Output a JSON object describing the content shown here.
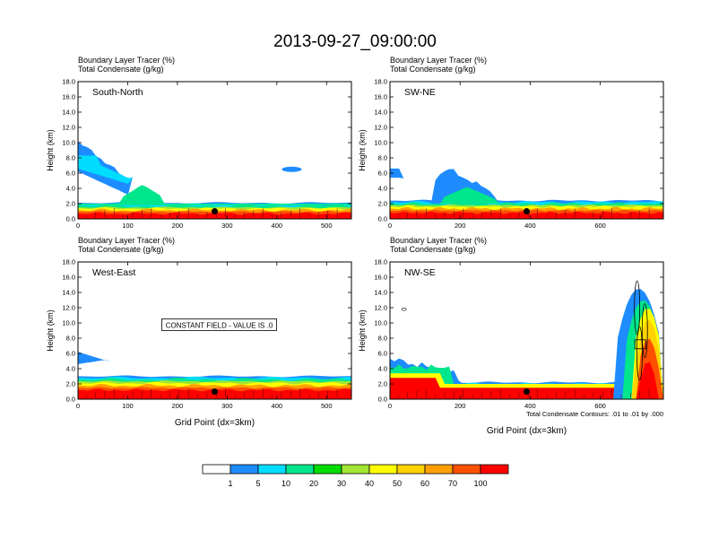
{
  "title": "2013-09-27_09:00:00",
  "panels": [
    {
      "id": "south-north",
      "label": "South-North",
      "subtitle1": "Boundary Layer Tracer   (%)",
      "subtitle2": "Total Condensate   (g/kg)",
      "xmax": 550,
      "xticks": [
        0,
        100,
        200,
        300,
        400,
        500
      ],
      "marker_x": 275
    },
    {
      "id": "sw-ne",
      "label": "SW-NE",
      "subtitle1": "Boundary Layer Tracer   (%)",
      "subtitle2": "Total Condensate   (g/kg)",
      "xmax": 780,
      "xticks": [
        0,
        200,
        400,
        600
      ],
      "marker_x": 390
    },
    {
      "id": "west-east",
      "label": "West-East",
      "subtitle1": "Boundary Layer Tracer   (%)",
      "subtitle2": "Total Condensate   (g/kg)",
      "xmax": 550,
      "xticks": [
        0,
        100,
        200,
        300,
        400,
        500
      ],
      "marker_x": 275,
      "annotation": "CONSTANT FIELD - VALUE IS .0"
    },
    {
      "id": "nw-se",
      "label": "NW-SE",
      "subtitle1": "Boundary Layer Tracer   (%)",
      "subtitle2": "Total Condensate   (g/kg)",
      "xmax": 780,
      "xticks": [
        0,
        200,
        400,
        600
      ],
      "marker_x": 390,
      "footnote": "Total Condensate Contours: .01 to .01 by .000"
    }
  ],
  "ylabel": "Height (km)",
  "xlabel": "Grid Point (dx=3km)",
  "yticks": [
    0.0,
    2.0,
    4.0,
    6.0,
    8.0,
    10.0,
    12.0,
    14.0,
    16.0,
    18.0
  ],
  "colorbar": {
    "labels": [
      "1",
      "5",
      "10",
      "20",
      "30",
      "40",
      "50",
      "60",
      "70",
      "100"
    ],
    "colors": [
      "#ffffff",
      "#1e8cff",
      "#00dcff",
      "#00e68c",
      "#00dc00",
      "#a0e632",
      "#ffff00",
      "#ffd200",
      "#ffa000",
      "#ff5000",
      "#ff0000"
    ]
  },
  "chart_data": {
    "type": "heatmap",
    "title": "2013-09-27_09:00:00",
    "xlabel": "Grid Point (dx=3km)",
    "ylabel": "Height (km)",
    "ylim": [
      0,
      18
    ],
    "legend_levels": [
      1,
      5,
      10,
      20,
      30,
      40,
      50,
      60,
      70,
      100
    ],
    "panels": [
      {
        "name": "South-North",
        "xlim": [
          0,
          550
        ],
        "boundary_layer_top_km": 2.0,
        "marker_grid_point": 275
      },
      {
        "name": "SW-NE",
        "xlim": [
          0,
          780
        ],
        "boundary_layer_top_km": 2.3,
        "marker_grid_point": 390
      },
      {
        "name": "West-East",
        "xlim": [
          0,
          550
        ],
        "boundary_layer_top_km": 2.8,
        "marker_grid_point": 275
      },
      {
        "name": "NW-SE",
        "xlim": [
          0,
          780
        ],
        "boundary_layer_top_km": 2.0,
        "marker_grid_point": 390
      }
    ]
  }
}
